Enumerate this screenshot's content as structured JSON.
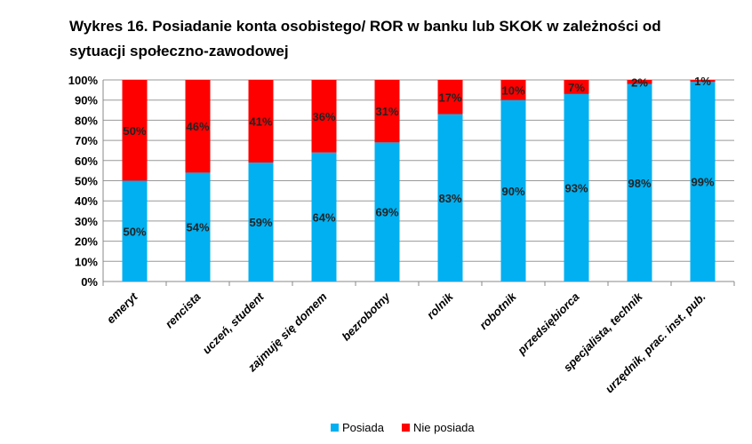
{
  "chart_data": {
    "type": "bar",
    "stacked": true,
    "percent_stacked": true,
    "title": "Wykres 16. Posiadanie konta osobistego/ ROR w banku lub SKOK w zależności od sytuacji społeczno-zawodowej",
    "categories": [
      "emeryt",
      "rencista",
      "uczeń, student",
      "zajmuję się domem",
      "bezrobotny",
      "rolnik",
      "robotnik",
      "przedsiębiorca",
      "specjalista, technik",
      "urzędnik, prac. inst. pub."
    ],
    "series": [
      {
        "name": "Posiada",
        "color": "#00b0f0",
        "values": [
          50,
          54,
          59,
          64,
          69,
          83,
          90,
          93,
          98,
          99
        ]
      },
      {
        "name": "Nie posiada",
        "color": "#ff0000",
        "values": [
          50,
          46,
          41,
          36,
          31,
          17,
          10,
          7,
          2,
          1
        ]
      }
    ],
    "ylim": [
      0,
      100
    ],
    "yticks": [
      "0%",
      "10%",
      "20%",
      "30%",
      "40%",
      "50%",
      "60%",
      "70%",
      "80%",
      "90%",
      "100%"
    ],
    "grid": true,
    "legend": "bottom"
  }
}
